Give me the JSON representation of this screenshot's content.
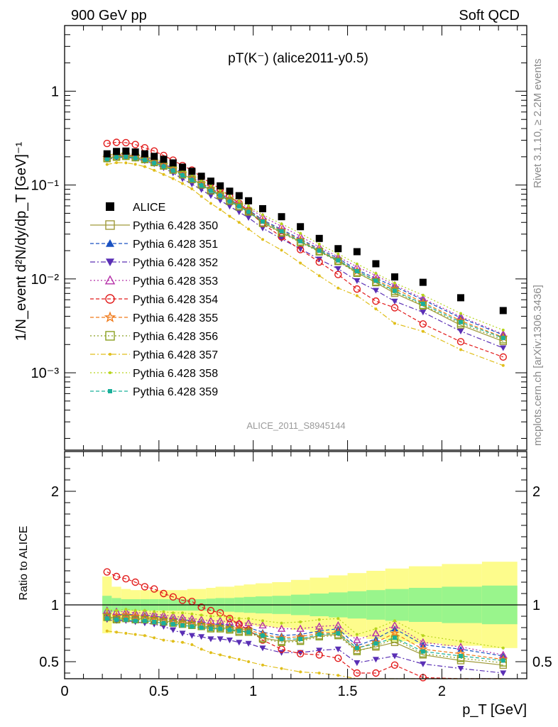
{
  "header": {
    "left": "900 GeV pp",
    "right": "Soft QCD"
  },
  "side": {
    "rivet": "Rivet 3.1.10, ≥ 2.2M events",
    "mcplots": "mcplots.cern.ch [arXiv:1306.3436]"
  },
  "chart_data": {
    "type": "scatter",
    "title": "pT(K⁻) (alice2011-y0.5)",
    "analysis_tag": "ALICE_2011_S8945144",
    "ylabel": "1/N_event d²N/dy/dp_T [GeV]⁻¹",
    "ratio_ylabel": "Ratio to ALICE",
    "xlabel": "p_T [GeV]",
    "x_scale": "linear",
    "y_scale": "log",
    "xlim": [
      0,
      2.45
    ],
    "ylim": [
      0.00015,
      5
    ],
    "ratio_ylim": [
      0.35,
      2.35
    ],
    "x_ticks": [
      "0",
      "0.5",
      "1",
      "1.5",
      "2"
    ],
    "y_ticks": [
      "10⁻³",
      "10⁻²",
      "10⁻¹",
      "1"
    ],
    "ratio_ticks": [
      "0.5",
      "1",
      "2"
    ],
    "legend_position": "middle-left",
    "x": [
      0.225,
      0.275,
      0.325,
      0.375,
      0.425,
      0.475,
      0.525,
      0.575,
      0.625,
      0.675,
      0.725,
      0.775,
      0.825,
      0.875,
      0.925,
      0.975,
      1.05,
      1.15,
      1.25,
      1.35,
      1.45,
      1.55,
      1.65,
      1.75,
      1.9,
      2.1,
      2.325
    ],
    "data": {
      "name": "ALICE",
      "values": [
        0.215,
        0.228,
        0.23,
        0.225,
        0.215,
        0.202,
        0.188,
        0.172,
        0.155,
        0.14,
        0.124,
        0.11,
        0.098,
        0.086,
        0.077,
        0.068,
        0.056,
        0.046,
        0.036,
        0.027,
        0.021,
        0.0195,
        0.0145,
        0.0105,
        0.0092,
        0.0063,
        0.0046
      ],
      "rel_err_stat": [
        0.08,
        0.06,
        0.05,
        0.05,
        0.05,
        0.05,
        0.05,
        0.05,
        0.05,
        0.05,
        0.05,
        0.055,
        0.06,
        0.06,
        0.065,
        0.07,
        0.075,
        0.08,
        0.09,
        0.1,
        0.11,
        0.12,
        0.13,
        0.14,
        0.15,
        0.16,
        0.17
      ],
      "rel_err_total": [
        0.25,
        0.16,
        0.14,
        0.13,
        0.13,
        0.13,
        0.13,
        0.13,
        0.13,
        0.14,
        0.14,
        0.15,
        0.16,
        0.16,
        0.17,
        0.18,
        0.19,
        0.2,
        0.22,
        0.24,
        0.26,
        0.28,
        0.3,
        0.32,
        0.34,
        0.36,
        0.38
      ]
    },
    "series": [
      {
        "name": "Pythia 6.428 350",
        "color": "#a09a3a",
        "marker": "square-open",
        "dash": "solid",
        "ratio": [
          0.9,
          0.88,
          0.89,
          0.88,
          0.88,
          0.87,
          0.86,
          0.85,
          0.84,
          0.83,
          0.82,
          0.8,
          0.8,
          0.79,
          0.77,
          0.77,
          0.71,
          0.68,
          0.69,
          0.73,
          0.74,
          0.6,
          0.63,
          0.67,
          0.56,
          0.51,
          0.47
        ]
      },
      {
        "name": "Pythia 6.428 351",
        "color": "#1a52c2",
        "marker": "triangle-up",
        "dash": "dash",
        "ratio": [
          0.92,
          0.91,
          0.92,
          0.91,
          0.91,
          0.9,
          0.89,
          0.88,
          0.87,
          0.86,
          0.85,
          0.83,
          0.83,
          0.82,
          0.8,
          0.8,
          0.76,
          0.73,
          0.74,
          0.77,
          0.79,
          0.64,
          0.7,
          0.79,
          0.65,
          0.61,
          0.55
        ]
      },
      {
        "name": "Pythia 6.428 352",
        "color": "#5a2fb5",
        "marker": "triangle-down",
        "dash": "dashdot",
        "ratio": [
          0.87,
          0.86,
          0.86,
          0.85,
          0.84,
          0.83,
          0.81,
          0.78,
          0.75,
          0.73,
          0.72,
          0.7,
          0.7,
          0.69,
          0.67,
          0.66,
          0.62,
          0.58,
          0.58,
          0.6,
          0.61,
          0.49,
          0.52,
          0.55,
          0.48,
          0.44,
          0.4
        ]
      },
      {
        "name": "Pythia 6.428 353",
        "color": "#b52fa8",
        "marker": "triangle-up-open",
        "dash": "dot",
        "ratio": [
          0.95,
          0.94,
          0.94,
          0.93,
          0.93,
          0.92,
          0.91,
          0.9,
          0.89,
          0.88,
          0.87,
          0.86,
          0.86,
          0.85,
          0.84,
          0.84,
          0.82,
          0.79,
          0.79,
          0.81,
          0.82,
          0.69,
          0.75,
          0.82,
          0.67,
          0.63,
          0.56
        ]
      },
      {
        "name": "Pythia 6.428 354",
        "color": "#e21a1a",
        "marker": "circle-open",
        "dash": "dash",
        "ratio": [
          1.29,
          1.25,
          1.23,
          1.2,
          1.16,
          1.14,
          1.1,
          1.07,
          1.04,
          1.03,
          0.98,
          0.95,
          0.93,
          0.88,
          0.83,
          0.78,
          0.69,
          0.61,
          0.57,
          0.56,
          0.53,
          0.4,
          0.4,
          0.47,
          0.36,
          0.34,
          0.32
        ]
      },
      {
        "name": "Pythia 6.428 355",
        "color": "#f07a1a",
        "marker": "star-open",
        "dash": "dash",
        "ratio": [
          0.91,
          0.9,
          0.91,
          0.9,
          0.89,
          0.88,
          0.87,
          0.86,
          0.85,
          0.84,
          0.83,
          0.82,
          0.81,
          0.8,
          0.79,
          0.78,
          0.74,
          0.71,
          0.72,
          0.75,
          0.76,
          0.62,
          0.67,
          0.75,
          0.61,
          0.57,
          0.52
        ]
      },
      {
        "name": "Pythia 6.428 356",
        "color": "#8aa020",
        "marker": "square-open",
        "dash": "dot",
        "ratio": [
          0.89,
          0.87,
          0.88,
          0.87,
          0.87,
          0.86,
          0.85,
          0.84,
          0.83,
          0.82,
          0.81,
          0.79,
          0.79,
          0.78,
          0.76,
          0.76,
          0.7,
          0.67,
          0.68,
          0.72,
          0.73,
          0.59,
          0.64,
          0.7,
          0.57,
          0.53,
          0.49
        ]
      },
      {
        "name": "Pythia 6.428 357",
        "color": "#e0be1a",
        "marker": "dot-small",
        "dash": "dashdot",
        "ratio": [
          0.77,
          0.76,
          0.75,
          0.74,
          0.73,
          0.71,
          0.69,
          0.68,
          0.67,
          0.65,
          0.61,
          0.58,
          0.56,
          0.54,
          0.52,
          0.5,
          0.47,
          0.44,
          0.41,
          0.4,
          0.38,
          0.34,
          0.33,
          0.32,
          0.3,
          0.28,
          0.26
        ]
      },
      {
        "name": "Pythia 6.428 358",
        "color": "#b6d41a",
        "marker": "dot-small",
        "dash": "dot",
        "ratio": [
          0.96,
          0.95,
          0.96,
          0.95,
          0.95,
          0.94,
          0.94,
          0.93,
          0.93,
          0.92,
          0.91,
          0.9,
          0.9,
          0.89,
          0.88,
          0.88,
          0.86,
          0.84,
          0.85,
          0.87,
          0.88,
          0.74,
          0.79,
          0.86,
          0.73,
          0.68,
          0.62
        ]
      },
      {
        "name": "Pythia 6.428 359",
        "color": "#1ab09a",
        "marker": "square-small",
        "dash": "dash",
        "ratio": [
          0.88,
          0.87,
          0.87,
          0.86,
          0.86,
          0.85,
          0.84,
          0.83,
          0.82,
          0.81,
          0.8,
          0.79,
          0.79,
          0.78,
          0.77,
          0.76,
          0.73,
          0.7,
          0.7,
          0.74,
          0.75,
          0.62,
          0.66,
          0.71,
          0.59,
          0.55,
          0.51
        ]
      }
    ],
    "band_colors": {
      "stat": "#99f58c",
      "total": "#fdfc8c"
    }
  }
}
